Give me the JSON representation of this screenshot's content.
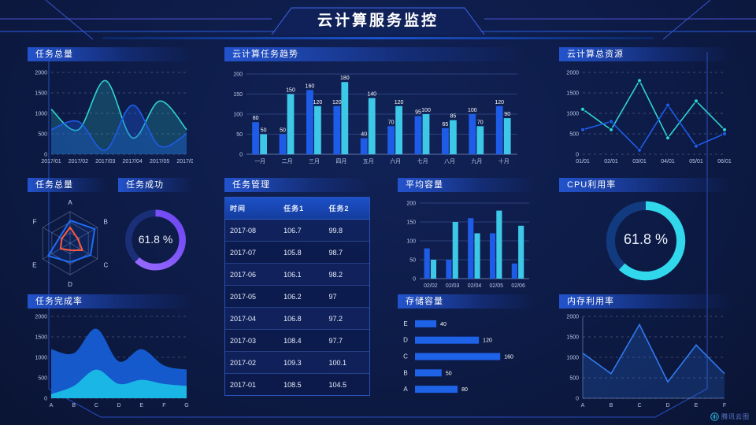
{
  "title": "云计算服务监控",
  "watermark": "腾讯云图",
  "colors": {
    "accent_blue": "#1e5ce8",
    "accent_cyan": "#3cc8e6",
    "teal_line": "#2fd3cf",
    "radar_blue": "#1f6df5",
    "radar_orange": "#ff5a3c",
    "donut_purple": "#6d46f2",
    "donut_cyan": "#31d7ea",
    "panel_header_bg": "#2456d4",
    "background": "#0d1b46"
  },
  "panels": {
    "p1": {
      "title": "任务总量"
    },
    "p2": {
      "title": "云计算任务趋势"
    },
    "p3": {
      "title": "云计算总资源"
    },
    "p4": {
      "title": "任务总量"
    },
    "p5": {
      "title": "任务成功"
    },
    "p6": {
      "title": "任务管理"
    },
    "p7": {
      "title": "平均容量"
    },
    "p8": {
      "title": "CPU利用率"
    },
    "p9": {
      "title": "任务完成率"
    },
    "p10": {
      "title": "存储容量"
    },
    "p11": {
      "title": "内存利用率"
    }
  },
  "table": {
    "columns": [
      "时间",
      "任务1",
      "任务2"
    ],
    "rows": [
      [
        "2017-08",
        "106.7",
        "99.8"
      ],
      [
        "2017-07",
        "105.8",
        "98.7"
      ],
      [
        "2017-06",
        "106.1",
        "98.2"
      ],
      [
        "2017-05",
        "106.2",
        "97"
      ],
      [
        "2017-04",
        "106.8",
        "97.2"
      ],
      [
        "2017-03",
        "108.4",
        "97.7"
      ],
      [
        "2017-02",
        "109.3",
        "100.1"
      ],
      [
        "2017-01",
        "108.5",
        "104.5"
      ]
    ]
  },
  "chart_data": [
    {
      "id": "task-total-area",
      "type": "area",
      "title": "任务总量",
      "x": [
        "2017/01",
        "2017/02",
        "2017/03",
        "2017/04",
        "2017/05",
        "2017/06"
      ],
      "ylim": [
        0,
        2000
      ],
      "yticks": [
        0,
        500,
        1000,
        1500,
        2000
      ],
      "grid": "dashed",
      "series": [
        {
          "name": "series-cyan",
          "color": "#2fd3cf",
          "fill_opacity": 0.22,
          "values": [
            1100,
            600,
            1800,
            400,
            1300,
            600
          ]
        },
        {
          "name": "series-blue",
          "color": "#1e5ce8",
          "fill_opacity": 0.32,
          "values": [
            600,
            800,
            100,
            1200,
            200,
            500
          ]
        }
      ]
    },
    {
      "id": "task-trend-bar",
      "type": "bar",
      "title": "云计算任务趋势",
      "categories": [
        "一月",
        "二月",
        "三月",
        "四月",
        "五月",
        "六月",
        "七月",
        "八月",
        "九月",
        "十月"
      ],
      "ylim": [
        0,
        200
      ],
      "yticks": [
        0,
        50,
        100,
        150,
        200
      ],
      "value_labels": true,
      "grid": "solid",
      "series": [
        {
          "name": "series-blue",
          "color": "#1e5ce8",
          "values": [
            80,
            50,
            160,
            120,
            40,
            70,
            95,
            65,
            100,
            120
          ]
        },
        {
          "name": "series-cyan",
          "color": "#3cc8e6",
          "values": [
            50,
            150,
            120,
            180,
            140,
            120,
            100,
            85,
            70,
            90
          ]
        }
      ]
    },
    {
      "id": "resources-line",
      "type": "line",
      "title": "云计算总资源",
      "x": [
        "01/01",
        "02/01",
        "03/01",
        "04/01",
        "05/01",
        "06/01"
      ],
      "ylim": [
        0,
        2000
      ],
      "yticks": [
        0,
        500,
        1000,
        1500,
        2000
      ],
      "markers": true,
      "grid": "dashed",
      "series": [
        {
          "name": "series-cyan",
          "color": "#2fd3cf",
          "values": [
            1100,
            600,
            1800,
            400,
            1300,
            600
          ]
        },
        {
          "name": "series-blue",
          "color": "#1e5ce8",
          "values": [
            600,
            800,
            100,
            1200,
            200,
            500
          ]
        }
      ]
    },
    {
      "id": "task-radar",
      "type": "radar",
      "title": "任务总量",
      "axes": [
        "A",
        "B",
        "C",
        "D",
        "E",
        "F"
      ],
      "max": 100,
      "levels": 3,
      "series": [
        {
          "name": "series-blue",
          "color": "#1f6df5",
          "fill": "rgba(31,109,245,0.12)",
          "values": [
            72,
            90,
            75,
            60,
            80,
            38
          ]
        },
        {
          "name": "series-orange",
          "color": "#ff5a3c",
          "fill": "none",
          "values": [
            50,
            28,
            45,
            22,
            35,
            30
          ]
        }
      ]
    },
    {
      "id": "success-donut",
      "type": "donut",
      "title": "任务成功",
      "value": 61.8,
      "label": "61.8 %",
      "color": "#6d46f2",
      "color2": "#9a6cff",
      "track": "#1b2f78"
    },
    {
      "id": "avg-capacity-bar",
      "type": "bar",
      "title": "平均容量",
      "categories": [
        "02/02",
        "02/03",
        "02/04",
        "02/05",
        "02/06"
      ],
      "ylim": [
        0,
        200
      ],
      "yticks": [
        0,
        50,
        100,
        150,
        200
      ],
      "value_labels": false,
      "grid": "solid",
      "series": [
        {
          "name": "series-blue",
          "color": "#1e5ce8",
          "values": [
            80,
            50,
            160,
            120,
            40
          ]
        },
        {
          "name": "series-cyan",
          "color": "#3cc8e6",
          "values": [
            50,
            150,
            120,
            180,
            140
          ]
        }
      ]
    },
    {
      "id": "cpu-donut",
      "type": "donut",
      "title": "CPU利用率",
      "value": 61.8,
      "label": "61.8 %",
      "color": "#31d7ea",
      "track": "#123a7e"
    },
    {
      "id": "completion-area",
      "type": "area",
      "title": "任务完成率",
      "x": [
        "A",
        "B",
        "C",
        "D",
        "E",
        "F",
        "G"
      ],
      "ylim": [
        0,
        2000
      ],
      "yticks": [
        0,
        500,
        1000,
        1500,
        2000
      ],
      "grid": "dashed",
      "series": [
        {
          "name": "series-blue",
          "color": "#1760d8",
          "fill_opacity": 0.92,
          "stroke": false,
          "values": [
            1200,
            1100,
            1700,
            900,
            1200,
            800,
            700
          ]
        },
        {
          "name": "series-cyan",
          "color": "#19b6e6",
          "fill_opacity": 1,
          "stroke": false,
          "values": [
            100,
            300,
            700,
            350,
            450,
            350,
            300
          ]
        }
      ]
    },
    {
      "id": "storage-hbar",
      "type": "hbar",
      "title": "存储容量",
      "categories": [
        "E",
        "D",
        "C",
        "B",
        "A"
      ],
      "values": [
        40,
        120,
        160,
        50,
        80
      ],
      "max": 170,
      "color": "#1e62e8"
    },
    {
      "id": "memory-line",
      "type": "line",
      "title": "内存利用率",
      "x": [
        "A",
        "B",
        "C",
        "D",
        "E",
        "F"
      ],
      "ylim": [
        0,
        2000
      ],
      "yticks": [
        0,
        500,
        1000,
        1500,
        2000
      ],
      "markers": false,
      "axis_lines": true,
      "grid": "dashed",
      "series": [
        {
          "name": "series-blue",
          "color": "#2f7af0",
          "area": true,
          "fill_opacity": 0.22,
          "values": [
            1100,
            600,
            1800,
            400,
            1300,
            600
          ]
        }
      ]
    }
  ]
}
